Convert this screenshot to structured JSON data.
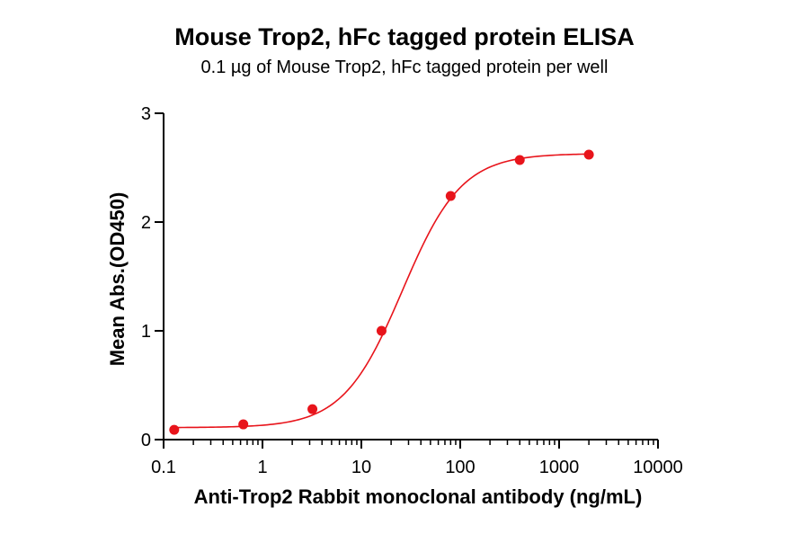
{
  "chart_data": {
    "type": "scatter",
    "title": "Mouse Trop2, hFc tagged protein ELISA",
    "subtitle": "0.1 µg of Mouse Trop2, hFc tagged protein per well",
    "xlabel": "Anti-Trop2 Rabbit monoclonal antibody (ng/mL)",
    "ylabel": "Mean Abs.(OD450)",
    "xscale": "log",
    "xlim": [
      0.1,
      10000
    ],
    "ylim": [
      0,
      3
    ],
    "xticks": [
      "0.1",
      "1",
      "10",
      "100",
      "1000",
      "10000"
    ],
    "yticks": [
      "0",
      "1",
      "2",
      "3"
    ],
    "grid": false,
    "colors": {
      "series": "#e8141b"
    },
    "series": [
      {
        "x": [
          0.128,
          0.64,
          3.2,
          16,
          80,
          400,
          2000
        ],
        "y": [
          0.09,
          0.14,
          0.28,
          1.0,
          2.24,
          2.57,
          2.62
        ],
        "fit": "4PL"
      }
    ]
  }
}
